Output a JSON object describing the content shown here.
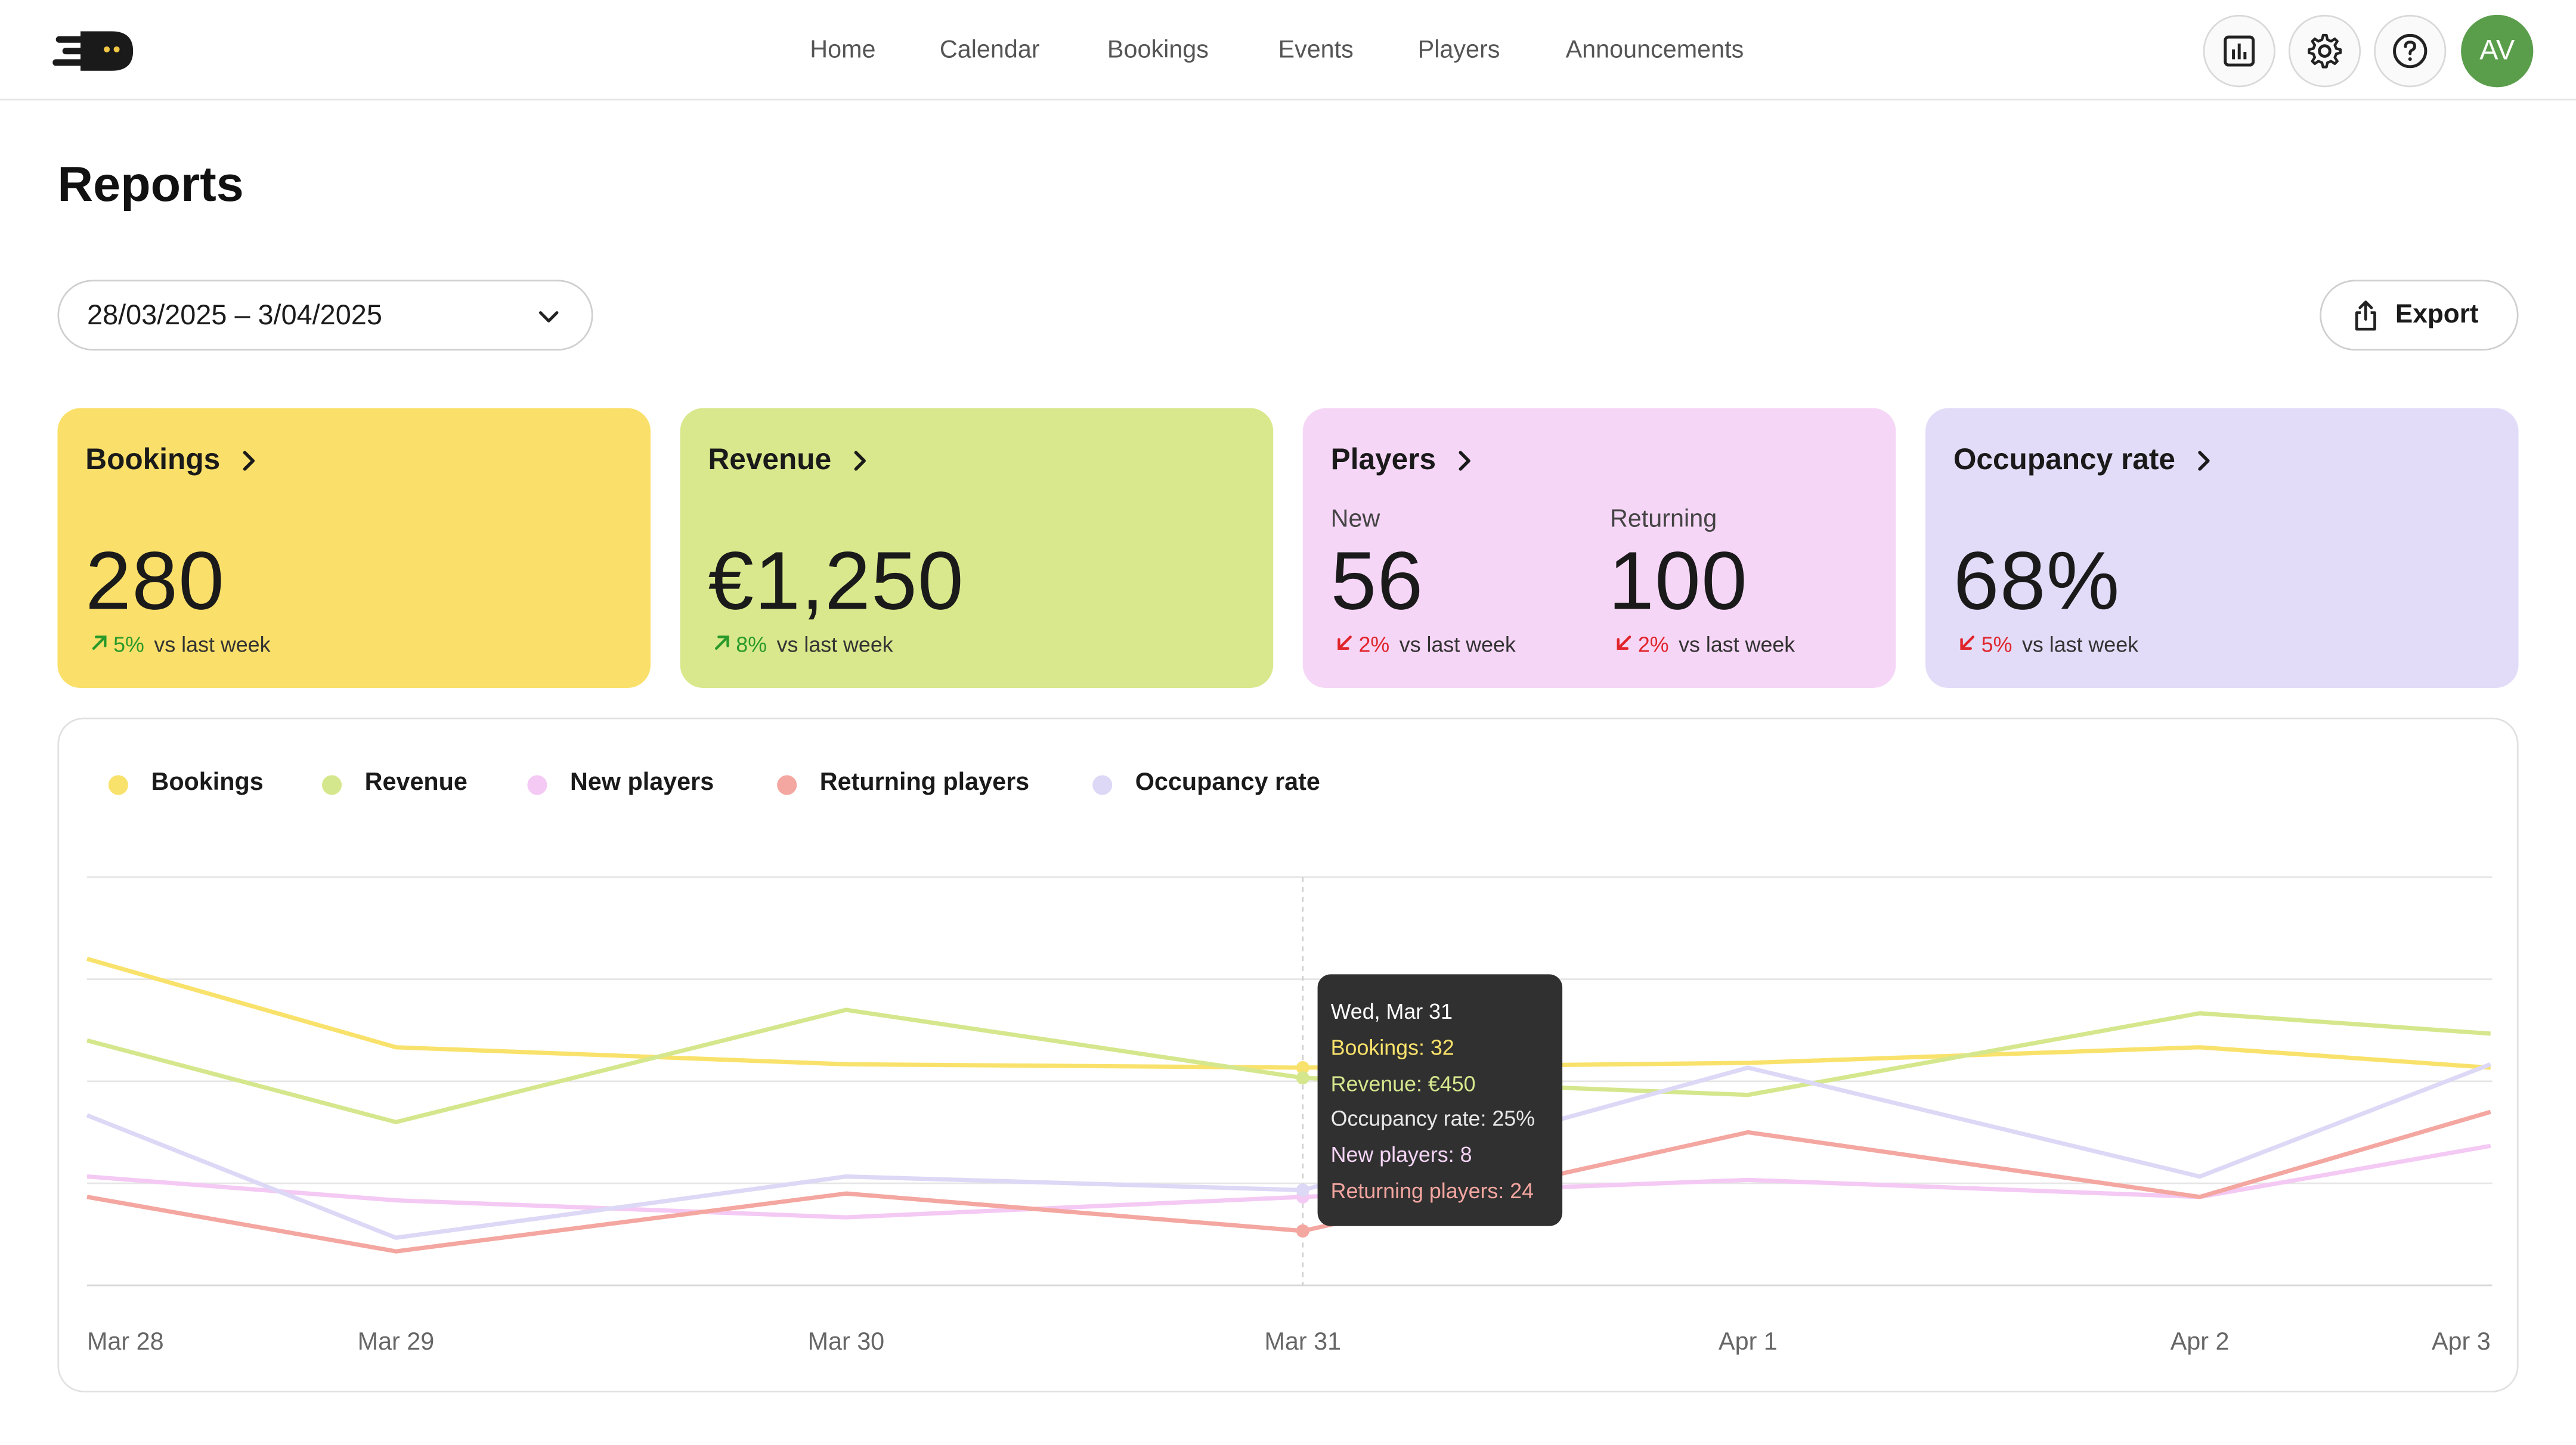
{
  "nav": {
    "items": [
      {
        "label": "Home"
      },
      {
        "label": "Calendar"
      },
      {
        "label": "Bookings"
      },
      {
        "label": "Events"
      },
      {
        "label": "Players"
      },
      {
        "label": "Announcements"
      }
    ],
    "avatar_initials": "AV"
  },
  "page": {
    "title": "Reports",
    "date_range": "28/03/2025 – 3/04/2025",
    "export_label": "Export"
  },
  "cards": {
    "bookings": {
      "title": "Bookings",
      "value": "280",
      "delta": "5%",
      "trend": "up",
      "delta_suffix": "vs last week",
      "color": "#fae06a"
    },
    "revenue": {
      "title": "Revenue",
      "value": "€1,250",
      "delta": "8%",
      "trend": "up",
      "delta_suffix": "vs last week",
      "color": "#d9e88c"
    },
    "players": {
      "title": "Players",
      "color": "#f6d6f6",
      "new": {
        "label": "New",
        "value": "56",
        "delta": "2%",
        "trend": "down",
        "delta_suffix": "vs last week"
      },
      "returning": {
        "label": "Returning",
        "value": "100",
        "delta": "2%",
        "trend": "down",
        "delta_suffix": "vs last week"
      }
    },
    "occupancy": {
      "title": "Occupancy rate",
      "value": "68%",
      "delta": "5%",
      "trend": "down",
      "delta_suffix": "vs last week",
      "color": "#e2dcf8"
    }
  },
  "chart_data": {
    "type": "line",
    "categories": [
      "Mar 28",
      "Mar 29",
      "Mar 30",
      "Mar 31",
      "Apr 1",
      "Apr 2",
      "Apr 3"
    ],
    "y_scale": "relative (no y-axis labels shown)",
    "ylim": [
      0,
      60
    ],
    "grid": true,
    "legend_position": "top-left",
    "series": [
      {
        "name": "Bookings",
        "color": "#f9e26b",
        "values": [
          48,
          35,
          32.5,
          32,
          32.7,
          35,
          32
        ]
      },
      {
        "name": "Revenue",
        "color": "#d5e78d",
        "values": [
          36,
          24,
          40.5,
          30.5,
          28,
          40,
          37
        ]
      },
      {
        "name": "New players",
        "color": "#f4c9f4",
        "values": [
          16,
          12.5,
          10,
          13,
          15.5,
          13,
          20.5
        ]
      },
      {
        "name": "Returning players",
        "color": "#f4a6a0",
        "values": [
          13,
          5,
          13.5,
          8,
          22.5,
          13,
          25.5
        ]
      },
      {
        "name": "Occupancy rate",
        "color": "#dcd8f6",
        "values": [
          25,
          7,
          16,
          14,
          32,
          16,
          32.5
        ]
      }
    ],
    "highlight": {
      "category": "Mar 31",
      "tooltip": {
        "title": "Wed, Mar 31",
        "lines": [
          {
            "text": "Bookings: 32",
            "color": "#f9e26b"
          },
          {
            "text": "Revenue: €450",
            "color": "#d5e78d"
          },
          {
            "text": "Occupancy rate: 25%",
            "color": "#e8e8e8"
          },
          {
            "text": "New players: 8",
            "color": "#f4d4f4"
          },
          {
            "text": "Returning players: 24",
            "color": "#f4a6a0"
          }
        ]
      }
    }
  }
}
